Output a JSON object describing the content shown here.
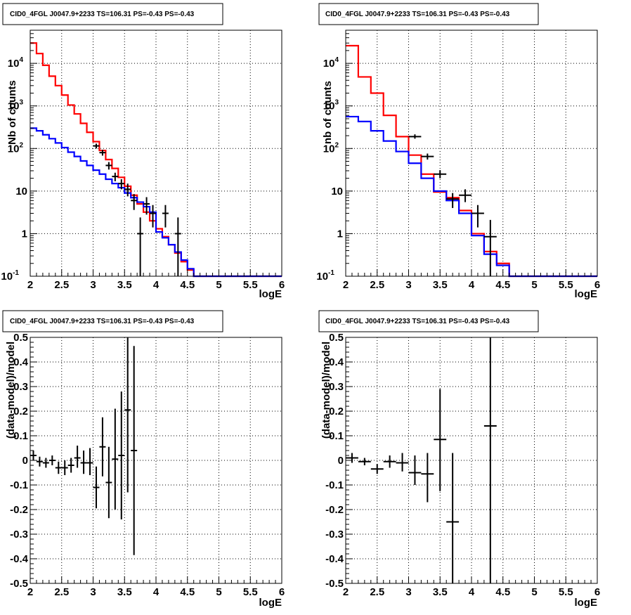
{
  "chart_data": [
    {
      "type": "line",
      "title": "CID0_4FGL J0047.9+2233 TS=106.31 PS=-0.43 PS=-0.43",
      "xlabel": "logE",
      "ylabel": "Nb of counts",
      "xlim": [
        2,
        6
      ],
      "ylim": [
        0.1,
        60000
      ],
      "yscale": "log",
      "grid": true,
      "x_ticks": [
        "2",
        "2.5",
        "3",
        "3.5",
        "4",
        "4.5",
        "5",
        "5.5",
        "6"
      ],
      "y_ticks": [
        "10^-1",
        "1",
        "10",
        "10^2",
        "10^3",
        "10^4"
      ],
      "bin_edges": [
        2.0,
        2.1,
        2.2,
        2.3,
        2.4,
        2.5,
        2.6,
        2.7,
        2.8,
        2.9,
        3.0,
        3.1,
        3.2,
        3.3,
        3.4,
        3.5,
        3.6,
        3.7,
        3.8,
        3.9,
        4.0,
        4.1,
        4.2,
        4.3,
        4.4,
        4.5,
        4.6,
        4.7,
        4.8,
        4.9,
        5.0,
        5.1,
        5.2,
        5.3,
        5.4,
        5.5,
        5.6,
        5.7,
        5.8,
        5.9,
        6.0
      ],
      "series": [
        {
          "color": "#ff0000",
          "values": [
            30000,
            17000,
            9000,
            5000,
            3000,
            1800,
            1050,
            650,
            390,
            240,
            145,
            90,
            55,
            34,
            21,
            13,
            8,
            5,
            3.2,
            2.0,
            1.3,
            0.85,
            0.55,
            0.35,
            0.22,
            0.14,
            0.1,
            0.1,
            0.1,
            0.1,
            0.1,
            0.1,
            0.1,
            0.1,
            0.1,
            0.1,
            0.1,
            0.1,
            0.1,
            0.1
          ]
        },
        {
          "color": "#0000ff",
          "values": [
            300,
            260,
            210,
            170,
            135,
            105,
            82,
            65,
            51,
            40,
            31,
            25,
            19,
            15,
            12,
            9,
            7,
            5.5,
            4.3,
            3.2,
            1.1,
            0.8,
            0.55,
            0.37,
            0.24,
            0.15,
            0.1,
            0.1,
            0.1,
            0.1,
            0.1,
            0.1,
            0.1,
            0.1,
            0.1,
            0.1,
            0.1,
            0.1,
            0.1,
            0.1
          ]
        }
      ],
      "data_points": [
        {
          "x": 3.05,
          "y": 115,
          "ylo": 100,
          "yhi": 130
        },
        {
          "x": 3.15,
          "y": 80,
          "ylo": 68,
          "yhi": 93
        },
        {
          "x": 3.25,
          "y": 40,
          "ylo": 32,
          "yhi": 48
        },
        {
          "x": 3.35,
          "y": 22,
          "ylo": 17,
          "yhi": 27
        },
        {
          "x": 3.45,
          "y": 15,
          "ylo": 11,
          "yhi": 19
        },
        {
          "x": 3.55,
          "y": 11,
          "ylo": 7.5,
          "yhi": 15
        },
        {
          "x": 3.65,
          "y": 6,
          "ylo": 3.6,
          "yhi": 8.5
        },
        {
          "x": 3.75,
          "y": 1,
          "ylo": 0.1,
          "yhi": 2.4
        },
        {
          "x": 3.85,
          "y": 5,
          "ylo": 2.8,
          "yhi": 7.2
        },
        {
          "x": 3.95,
          "y": 3,
          "ylo": 1.4,
          "yhi": 4.7
        },
        {
          "x": 4.15,
          "y": 3,
          "ylo": 1.4,
          "yhi": 4.7
        },
        {
          "x": 4.35,
          "y": 1,
          "ylo": 0.1,
          "yhi": 2.4
        }
      ]
    },
    {
      "type": "line",
      "title": "CID0_4FGL J0047.9+2233 TS=106.31 PS=-0.43 PS=-0.43",
      "xlabel": "logE",
      "ylabel": "nb of counts",
      "xlim": [
        2,
        6
      ],
      "ylim": [
        0.1,
        60000
      ],
      "yscale": "log",
      "grid": true,
      "x_ticks": [
        "2",
        "2.5",
        "3",
        "3.5",
        "4",
        "4.5",
        "5",
        "5.5",
        "6"
      ],
      "y_ticks": [
        "10^-1",
        "1",
        "10",
        "10^2",
        "10^3",
        "10^4"
      ],
      "bin_edges": [
        2.0,
        2.2,
        2.4,
        2.6,
        2.8,
        3.0,
        3.2,
        3.4,
        3.6,
        3.8,
        4.0,
        4.2,
        4.4,
        4.6,
        4.8,
        5.0,
        5.2,
        5.4,
        5.6,
        5.8,
        6.0
      ],
      "series": [
        {
          "color": "#ff0000",
          "values": [
            26000,
            4800,
            2000,
            600,
            190,
            70,
            25,
            9.5,
            7,
            3.5,
            1.0,
            0.38,
            0.2,
            0.1,
            0.1,
            0.1,
            0.1,
            0.1,
            0.1,
            0.1
          ]
        },
        {
          "color": "#0000ff",
          "values": [
            560,
            430,
            260,
            150,
            85,
            45,
            20,
            10,
            6,
            3.0,
            0.9,
            0.33,
            0.18,
            0.1,
            0.1,
            0.1,
            0.1,
            0.1,
            0.1,
            0.1
          ]
        }
      ],
      "data_points": [
        {
          "x": 3.1,
          "y": 190,
          "ylo": 170,
          "yhi": 215
        },
        {
          "x": 3.3,
          "y": 65,
          "ylo": 55,
          "yhi": 76
        },
        {
          "x": 3.5,
          "y": 25,
          "ylo": 20,
          "yhi": 31
        },
        {
          "x": 3.7,
          "y": 6.5,
          "ylo": 4.0,
          "yhi": 9.0
        },
        {
          "x": 3.9,
          "y": 8,
          "ylo": 5.5,
          "yhi": 11
        },
        {
          "x": 4.1,
          "y": 3,
          "ylo": 1.4,
          "yhi": 4.7
        },
        {
          "x": 4.3,
          "y": 0.85,
          "ylo": 0.1,
          "yhi": 2.1
        }
      ]
    },
    {
      "type": "scatter",
      "title": "CID0_4FGL J0047.9+2233 TS=106.31 PS=-0.43 PS=-0.43",
      "xlabel": "logE",
      "ylabel": "(data-model)/model",
      "xlim": [
        2,
        6
      ],
      "ylim": [
        -0.5,
        0.5
      ],
      "grid": true,
      "x_ticks": [
        "2",
        "2.5",
        "3",
        "3.5",
        "4",
        "4.5",
        "5",
        "5.5",
        "6"
      ],
      "y_ticks": [
        "-0.5",
        "-0.4",
        "-0.3",
        "-0.2",
        "-0.1",
        "0",
        "0.1",
        "0.2",
        "0.3",
        "0.4",
        "0.5"
      ],
      "x_halfwidth": 0.05,
      "data_points": [
        {
          "x": 2.05,
          "y": 0.02,
          "ylo": 0.0,
          "yhi": 0.04
        },
        {
          "x": 2.15,
          "y": -0.005,
          "ylo": -0.025,
          "yhi": 0.015
        },
        {
          "x": 2.25,
          "y": -0.01,
          "ylo": -0.03,
          "yhi": 0.01
        },
        {
          "x": 2.35,
          "y": 0.0,
          "ylo": -0.02,
          "yhi": 0.02
        },
        {
          "x": 2.45,
          "y": -0.03,
          "ylo": -0.055,
          "yhi": -0.005
        },
        {
          "x": 2.55,
          "y": -0.03,
          "ylo": -0.06,
          "yhi": 0.0
        },
        {
          "x": 2.65,
          "y": -0.02,
          "ylo": -0.05,
          "yhi": 0.01
        },
        {
          "x": 2.75,
          "y": 0.01,
          "ylo": -0.03,
          "yhi": 0.06
        },
        {
          "x": 2.85,
          "y": -0.01,
          "ylo": -0.055,
          "yhi": 0.04
        },
        {
          "x": 2.95,
          "y": -0.01,
          "ylo": -0.06,
          "yhi": 0.05
        },
        {
          "x": 3.05,
          "y": -0.11,
          "ylo": -0.195,
          "yhi": -0.025
        },
        {
          "x": 3.15,
          "y": 0.055,
          "ylo": -0.065,
          "yhi": 0.175
        },
        {
          "x": 3.25,
          "y": -0.09,
          "ylo": -0.235,
          "yhi": 0.055
        },
        {
          "x": 3.35,
          "y": 0.005,
          "ylo": -0.2,
          "yhi": 0.21
        },
        {
          "x": 3.45,
          "y": 0.02,
          "ylo": -0.24,
          "yhi": 0.28
        },
        {
          "x": 3.55,
          "y": 0.205,
          "ylo": -0.13,
          "yhi": 0.5
        },
        {
          "x": 3.65,
          "y": 0.04,
          "ylo": -0.385,
          "yhi": 0.465
        }
      ]
    },
    {
      "type": "scatter",
      "title": "CID0_4FGL J0047.9+2233 TS=106.31 PS=-0.43 PS=-0.43",
      "xlabel": "logE",
      "ylabel": "(data-model)/model",
      "xlim": [
        2,
        6
      ],
      "ylim": [
        -0.5,
        0.5
      ],
      "grid": true,
      "x_ticks": [
        "2",
        "2.5",
        "3",
        "3.5",
        "4",
        "4.5",
        "5",
        "5.5",
        "6"
      ],
      "y_ticks": [
        "-0.5",
        "-0.4",
        "-0.3",
        "-0.2",
        "-0.1",
        "0",
        "0.1",
        "0.2",
        "0.3",
        "0.4",
        "0.5"
      ],
      "x_halfwidth": 0.1,
      "data_points": [
        {
          "x": 2.1,
          "y": 0.01,
          "ylo": -0.01,
          "yhi": 0.03
        },
        {
          "x": 2.3,
          "y": -0.005,
          "ylo": -0.02,
          "yhi": 0.01
        },
        {
          "x": 2.5,
          "y": -0.035,
          "ylo": -0.055,
          "yhi": -0.015
        },
        {
          "x": 2.7,
          "y": -0.005,
          "ylo": -0.03,
          "yhi": 0.02
        },
        {
          "x": 2.9,
          "y": -0.01,
          "ylo": -0.045,
          "yhi": 0.03
        },
        {
          "x": 3.1,
          "y": -0.05,
          "ylo": -0.1,
          "yhi": 0.02
        },
        {
          "x": 3.3,
          "y": -0.055,
          "ylo": -0.17,
          "yhi": 0.03
        },
        {
          "x": 3.5,
          "y": 0.085,
          "ylo": -0.125,
          "yhi": 0.29
        },
        {
          "x": 3.7,
          "y": -0.25,
          "ylo": -0.5,
          "yhi": 0.03
        },
        {
          "x": 4.3,
          "y": 0.14,
          "ylo": -0.5,
          "yhi": 0.5
        }
      ]
    }
  ]
}
